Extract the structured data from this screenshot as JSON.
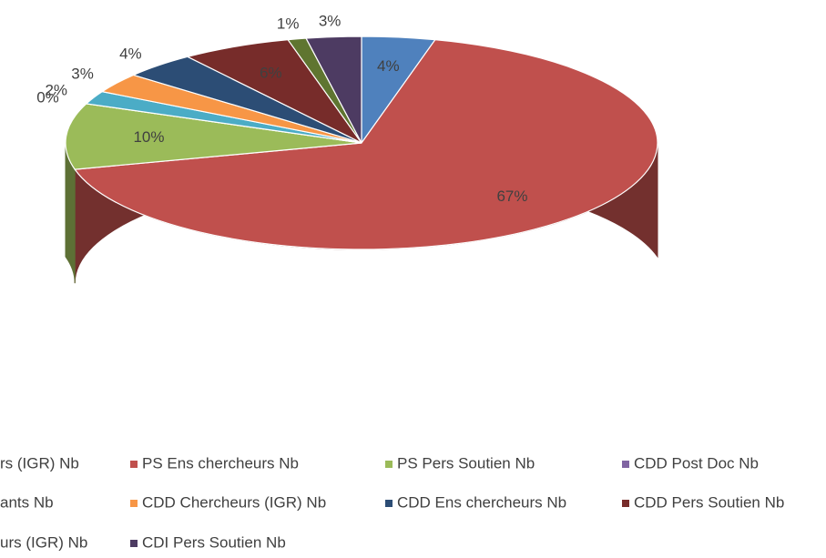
{
  "chart_data": {
    "type": "pie",
    "categories": [
      "rs (IGR) Nb",
      "PS Ens chercheurs Nb",
      "PS Pers Soutien Nb",
      "CDD Post Doc Nb",
      "ants Nb",
      "CDD Chercheurs (IGR) Nb",
      "CDD Ens chercheurs Nb",
      "CDD Pers Soutien Nb",
      "urs (IGR) Nb",
      "CDI Pers Soutien Nb"
    ],
    "values": [
      4,
      67,
      10,
      0,
      2,
      3,
      4,
      6,
      1,
      3
    ],
    "value_labels": [
      "4%",
      "67%",
      "10%",
      "0%",
      "2%",
      "3%",
      "4%",
      "6%",
      "1%",
      "3%"
    ],
    "colors": [
      "#4f81bd",
      "#c0504d",
      "#9bbb59",
      "#8064a2",
      "#4bacc6",
      "#f79646",
      "#2c4d75",
      "#772c2a",
      "#5f7530",
      "#4d3b62"
    ],
    "legend": "bottom"
  }
}
